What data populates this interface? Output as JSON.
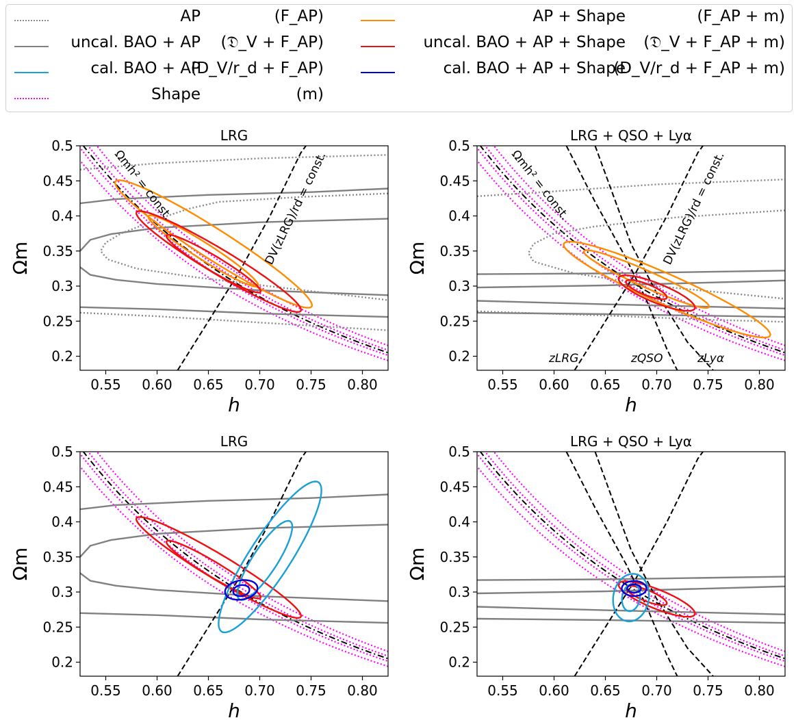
{
  "legend": {
    "entries": [
      {
        "label": "AP",
        "formula": "(F_AP)",
        "style": "dotted",
        "color": "#888888"
      },
      {
        "label": "uncal. BAO + AP",
        "formula": "(𝔇_V + F_AP)",
        "style": "solid",
        "color": "#808080"
      },
      {
        "label": "cal. BAO + AP",
        "formula": "(D_V/r_d + F_AP)",
        "style": "solid",
        "color": "#1a9fd6"
      },
      {
        "label": "Shape",
        "formula": "(m)",
        "style": "dotted",
        "color": "#ff00ff"
      },
      {
        "label": "AP + Shape",
        "formula": "(F_AP + m)",
        "style": "solid",
        "color": "#ff8c00"
      },
      {
        "label": "uncal. BAO + AP + Shape",
        "formula": "(𝔇_V + F_AP + m)",
        "style": "solid",
        "color": "#ee1111"
      },
      {
        "label": "cal. BAO + AP + Shape",
        "formula": "(D_V/r_d + F_AP + m)",
        "style": "solid",
        "color": "#0000dd"
      }
    ]
  },
  "panels": [
    {
      "title": "LRG"
    },
    {
      "title": "LRG + QSO + Lyα"
    },
    {
      "title": "LRG"
    },
    {
      "title": "LRG + QSO + Lyα"
    }
  ],
  "annotations": {
    "omh2": "Ωmh² = const.",
    "dv": "DV(zLRG)/rd = const.",
    "z_lrg": "zLRG",
    "z_qso": "zQSO",
    "z_lya": "zLyα"
  },
  "colors": {
    "ap": "#888888",
    "uncal_bao_ap": "#808080",
    "cal_bao_ap": "#1a9fd6",
    "shape": "#ff00ff",
    "ap_shape": "#ff8c00",
    "uncal_all": "#ee1111",
    "cal_all": "#0000dd"
  },
  "chart_data": [
    {
      "type": "contour",
      "title": "LRG",
      "xlabel": "h",
      "ylabel": "Ωm",
      "xlim": [
        0.525,
        0.825
      ],
      "ylim": [
        0.18,
        0.5
      ],
      "xticks": [
        "0.55",
        "0.60",
        "0.65",
        "0.70",
        "0.75",
        "0.80"
      ],
      "yticks": [
        "0.2",
        "0.25",
        "0.3",
        "0.35",
        "0.4",
        "0.45",
        "0.5"
      ],
      "series": [
        "AP",
        "uncal. BAO + AP",
        "Shape",
        "AP + Shape",
        "uncal. BAO + AP + Shape"
      ],
      "annotations": [
        "Ωmh² = const.",
        "DV(zLRG)/rd = const."
      ]
    },
    {
      "type": "contour",
      "title": "LRG + QSO + Lyα",
      "xlabel": "h",
      "ylabel": "Ωm",
      "xlim": [
        0.525,
        0.825
      ],
      "ylim": [
        0.18,
        0.5
      ],
      "xticks": [
        "0.55",
        "0.60",
        "0.65",
        "0.70",
        "0.75",
        "0.80"
      ],
      "yticks": [
        "0.2",
        "0.25",
        "0.3",
        "0.35",
        "0.4",
        "0.45",
        "0.5"
      ],
      "series": [
        "AP",
        "uncal. BAO + AP",
        "Shape",
        "AP + Shape",
        "uncal. BAO + AP + Shape"
      ],
      "annotations": [
        "Ωmh² = const.",
        "DV(zLRG)/rd = const.",
        "zLRG",
        "zQSO",
        "zLyα"
      ]
    },
    {
      "type": "contour",
      "title": "LRG",
      "xlabel": "h",
      "ylabel": "Ωm",
      "xlim": [
        0.525,
        0.825
      ],
      "ylim": [
        0.18,
        0.5
      ],
      "xticks": [
        "0.55",
        "0.60",
        "0.65",
        "0.70",
        "0.75",
        "0.80"
      ],
      "yticks": [
        "0.2",
        "0.25",
        "0.3",
        "0.35",
        "0.4",
        "0.45",
        "0.5"
      ],
      "series": [
        "uncal. BAO + AP",
        "cal. BAO + AP",
        "Shape",
        "uncal. BAO + AP + Shape",
        "cal. BAO + AP + Shape"
      ]
    },
    {
      "type": "contour",
      "title": "LRG + QSO + Lyα",
      "xlabel": "h",
      "ylabel": "Ωm",
      "xlim": [
        0.525,
        0.825
      ],
      "ylim": [
        0.18,
        0.5
      ],
      "xticks": [
        "0.55",
        "0.60",
        "0.65",
        "0.70",
        "0.75",
        "0.80"
      ],
      "yticks": [
        "0.2",
        "0.25",
        "0.3",
        "0.35",
        "0.4",
        "0.45",
        "0.5"
      ],
      "series": [
        "uncal. BAO + AP",
        "cal. BAO + AP",
        "Shape",
        "uncal. BAO + AP + Shape",
        "cal. BAO + AP + Shape"
      ]
    }
  ]
}
